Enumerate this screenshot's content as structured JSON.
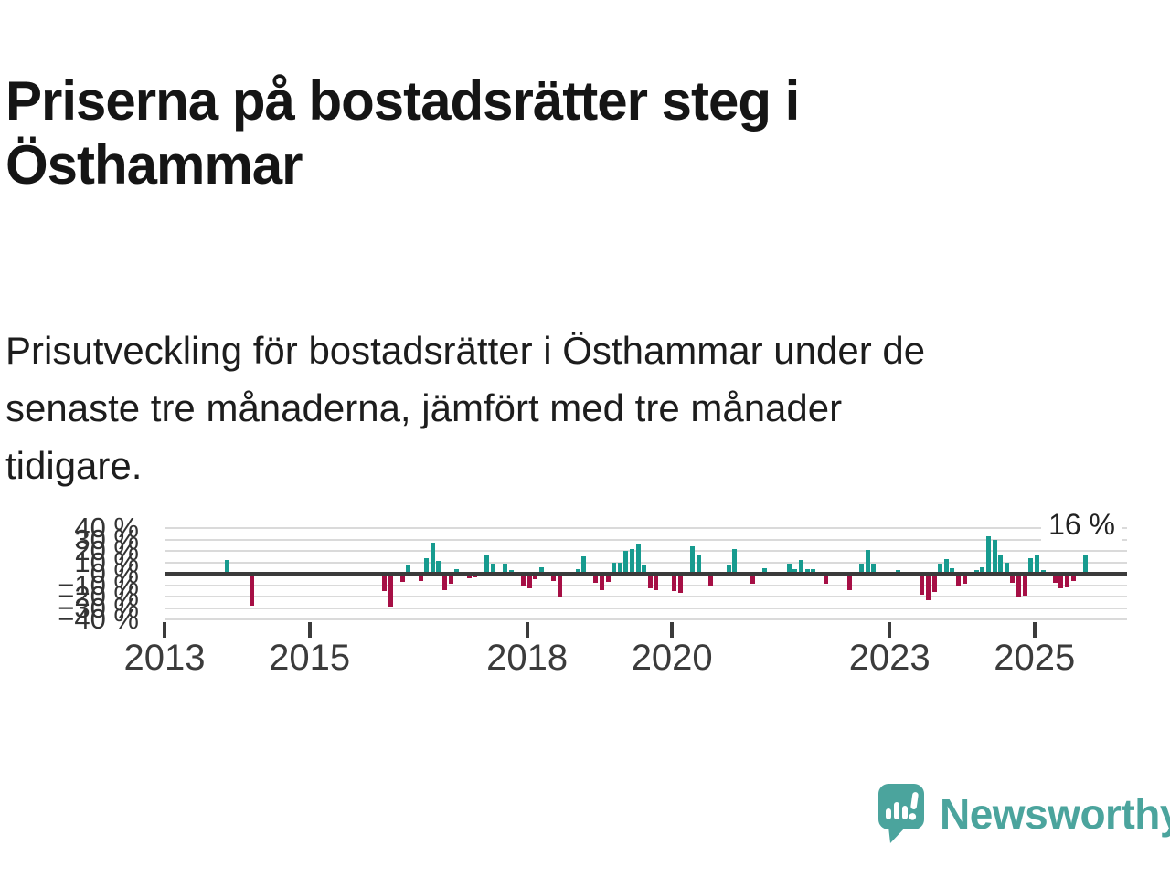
{
  "title_lines": [
    "Priserna på bostadsrätter steg i",
    "Östhammar"
  ],
  "subtitle_lines": [
    "Prisutveckling för bostadsrätter i Östhammar under de",
    "senaste tre månaderna, jämfört med tre månader",
    "tidigare."
  ],
  "chart_data": {
    "type": "bar",
    "unit": "%",
    "ylim": [
      -40,
      40
    ],
    "grid": true,
    "positive_color": "#179b8f",
    "negative_color": "#a60f45",
    "annotation": {
      "text": "16 %",
      "refers_to": "2025-09"
    },
    "yticks": [
      {
        "value": 40,
        "label": "40 %"
      },
      {
        "value": 30,
        "label": "30 %"
      },
      {
        "value": 20,
        "label": "20 %"
      },
      {
        "value": 10,
        "label": "10 %"
      },
      {
        "value": 0,
        "label": "0 %"
      },
      {
        "value": -10,
        "label": "−10 %"
      },
      {
        "value": -20,
        "label": "−20 %"
      },
      {
        "value": -30,
        "label": "−30 %"
      },
      {
        "value": -40,
        "label": "−40 %"
      }
    ],
    "xticks": [
      {
        "year": 2013,
        "label": "2013"
      },
      {
        "year": 2015,
        "label": "2015"
      },
      {
        "year": 2018,
        "label": "2018"
      },
      {
        "year": 2020,
        "label": "2020"
      },
      {
        "year": 2023,
        "label": "2023"
      },
      {
        "year": 2025,
        "label": "2025"
      }
    ],
    "series": [
      {
        "date": "2013-11",
        "value": 12
      },
      {
        "date": "2014-03",
        "value": -28
      },
      {
        "date": "2016-01",
        "value": -15
      },
      {
        "date": "2016-02",
        "value": -29
      },
      {
        "date": "2016-04",
        "value": -7
      },
      {
        "date": "2016-05",
        "value": 7
      },
      {
        "date": "2016-07",
        "value": -6
      },
      {
        "date": "2016-08",
        "value": 14
      },
      {
        "date": "2016-09",
        "value": 27
      },
      {
        "date": "2016-10",
        "value": 11
      },
      {
        "date": "2016-11",
        "value": -14
      },
      {
        "date": "2016-12",
        "value": -9
      },
      {
        "date": "2017-01",
        "value": 4
      },
      {
        "date": "2017-03",
        "value": -4
      },
      {
        "date": "2017-04",
        "value": -3
      },
      {
        "date": "2017-06",
        "value": 16
      },
      {
        "date": "2017-07",
        "value": 9
      },
      {
        "date": "2017-09",
        "value": 9
      },
      {
        "date": "2017-10",
        "value": 3
      },
      {
        "date": "2017-11",
        "value": -2
      },
      {
        "date": "2017-12",
        "value": -11
      },
      {
        "date": "2018-01",
        "value": -13
      },
      {
        "date": "2018-02",
        "value": -5
      },
      {
        "date": "2018-03",
        "value": 6
      },
      {
        "date": "2018-05",
        "value": -6
      },
      {
        "date": "2018-06",
        "value": -20
      },
      {
        "date": "2018-09",
        "value": 4
      },
      {
        "date": "2018-10",
        "value": 15
      },
      {
        "date": "2018-12",
        "value": -8
      },
      {
        "date": "2019-01",
        "value": -14
      },
      {
        "date": "2019-02",
        "value": -7
      },
      {
        "date": "2019-03",
        "value": 10
      },
      {
        "date": "2019-04",
        "value": 10
      },
      {
        "date": "2019-05",
        "value": 20
      },
      {
        "date": "2019-06",
        "value": 22
      },
      {
        "date": "2019-07",
        "value": 26
      },
      {
        "date": "2019-08",
        "value": 8
      },
      {
        "date": "2019-09",
        "value": -13
      },
      {
        "date": "2019-10",
        "value": -14
      },
      {
        "date": "2020-01",
        "value": -15
      },
      {
        "date": "2020-02",
        "value": -17
      },
      {
        "date": "2020-04",
        "value": 24
      },
      {
        "date": "2020-05",
        "value": 17
      },
      {
        "date": "2020-07",
        "value": -11
      },
      {
        "date": "2020-10",
        "value": 8
      },
      {
        "date": "2020-11",
        "value": 22
      },
      {
        "date": "2021-02",
        "value": -9
      },
      {
        "date": "2021-04",
        "value": 5
      },
      {
        "date": "2021-08",
        "value": 9
      },
      {
        "date": "2021-09",
        "value": 4
      },
      {
        "date": "2021-10",
        "value": 12
      },
      {
        "date": "2021-11",
        "value": 4
      },
      {
        "date": "2021-12",
        "value": 4
      },
      {
        "date": "2022-02",
        "value": -9
      },
      {
        "date": "2022-06",
        "value": -14
      },
      {
        "date": "2022-08",
        "value": 9
      },
      {
        "date": "2022-09",
        "value": 21
      },
      {
        "date": "2022-10",
        "value": 9
      },
      {
        "date": "2023-02",
        "value": 3
      },
      {
        "date": "2023-06",
        "value": -18
      },
      {
        "date": "2023-07",
        "value": -23
      },
      {
        "date": "2023-08",
        "value": -16
      },
      {
        "date": "2023-09",
        "value": 9
      },
      {
        "date": "2023-10",
        "value": 13
      },
      {
        "date": "2023-11",
        "value": 5
      },
      {
        "date": "2023-12",
        "value": -11
      },
      {
        "date": "2024-01",
        "value": -9
      },
      {
        "date": "2024-03",
        "value": 3
      },
      {
        "date": "2024-04",
        "value": 6
      },
      {
        "date": "2024-05",
        "value": 33
      },
      {
        "date": "2024-06",
        "value": 30
      },
      {
        "date": "2024-07",
        "value": 16
      },
      {
        "date": "2024-08",
        "value": 10
      },
      {
        "date": "2024-09",
        "value": -8
      },
      {
        "date": "2024-10",
        "value": -20
      },
      {
        "date": "2024-11",
        "value": -19
      },
      {
        "date": "2024-12",
        "value": 14
      },
      {
        "date": "2025-01",
        "value": 16
      },
      {
        "date": "2025-02",
        "value": 3
      },
      {
        "date": "2025-04",
        "value": -8
      },
      {
        "date": "2025-05",
        "value": -13
      },
      {
        "date": "2025-06",
        "value": -12
      },
      {
        "date": "2025-07",
        "value": -6
      },
      {
        "date": "2025-09",
        "value": 16
      }
    ]
  },
  "branding": {
    "logo_text": "Newsworthy",
    "logo_icon": "speech-bubble-bar-chart-icon",
    "logo_color": "#4ba49d"
  }
}
